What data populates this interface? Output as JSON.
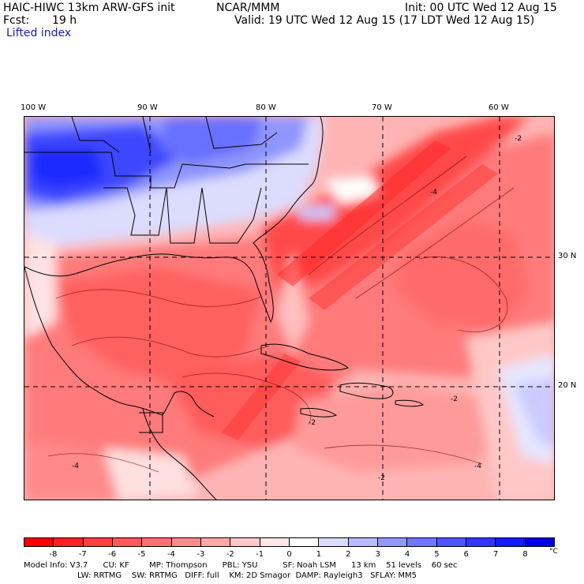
{
  "header": {
    "model_line": "HAIC-HIWC 13km ARW-GFS init",
    "org": "NCAR/MMM",
    "init": "Init: 00 UTC Wed 12 Aug 15",
    "fcst_label": "Fcst:",
    "fcst_value": "19 h",
    "valid": "Valid: 19 UTC Wed 12 Aug 15 (17 LDT Wed 12 Aug 15)",
    "field": "Lifted index"
  },
  "longitude_labels": [
    "100 W",
    "90 W",
    "80 W",
    "70 W",
    "60 W"
  ],
  "latitude_labels": [
    "30 N",
    "20 N"
  ],
  "contour_labels": [
    "-4",
    "-2",
    "-2",
    "-2",
    "-4",
    "-4",
    "-2"
  ],
  "colorbar": {
    "ticks": [
      "-8",
      "-7",
      "-6",
      "-5",
      "-4",
      "-3",
      "-2",
      "-1",
      "0",
      "1",
      "2",
      "3",
      "4",
      "5",
      "6",
      "7",
      "8"
    ],
    "unit": "°C",
    "colors": [
      "#ff0000",
      "#ff2020",
      "#ff4141",
      "#ff5a5a",
      "#ff7272",
      "#ff8c8c",
      "#ffa8a8",
      "#ffc8c8",
      "#ffe6e6",
      "#ffffff",
      "#d9dbff",
      "#b8bcff",
      "#9398ff",
      "#7076ff",
      "#4f56ff",
      "#3038ff",
      "#121cff",
      "#0000e6"
    ]
  },
  "model_info": {
    "line1": "Model Info: V3.7      CU: KF        MP: Thompson      PBL: YSU          SF: Noah LSM      13 km    51 levels    60 sec",
    "line2": "LW: RRTMG    SW: RRTMG   DIFF: full    KM: 2D Smagor  DAMP: Rayleigh3   SFLAY: MM5"
  }
}
